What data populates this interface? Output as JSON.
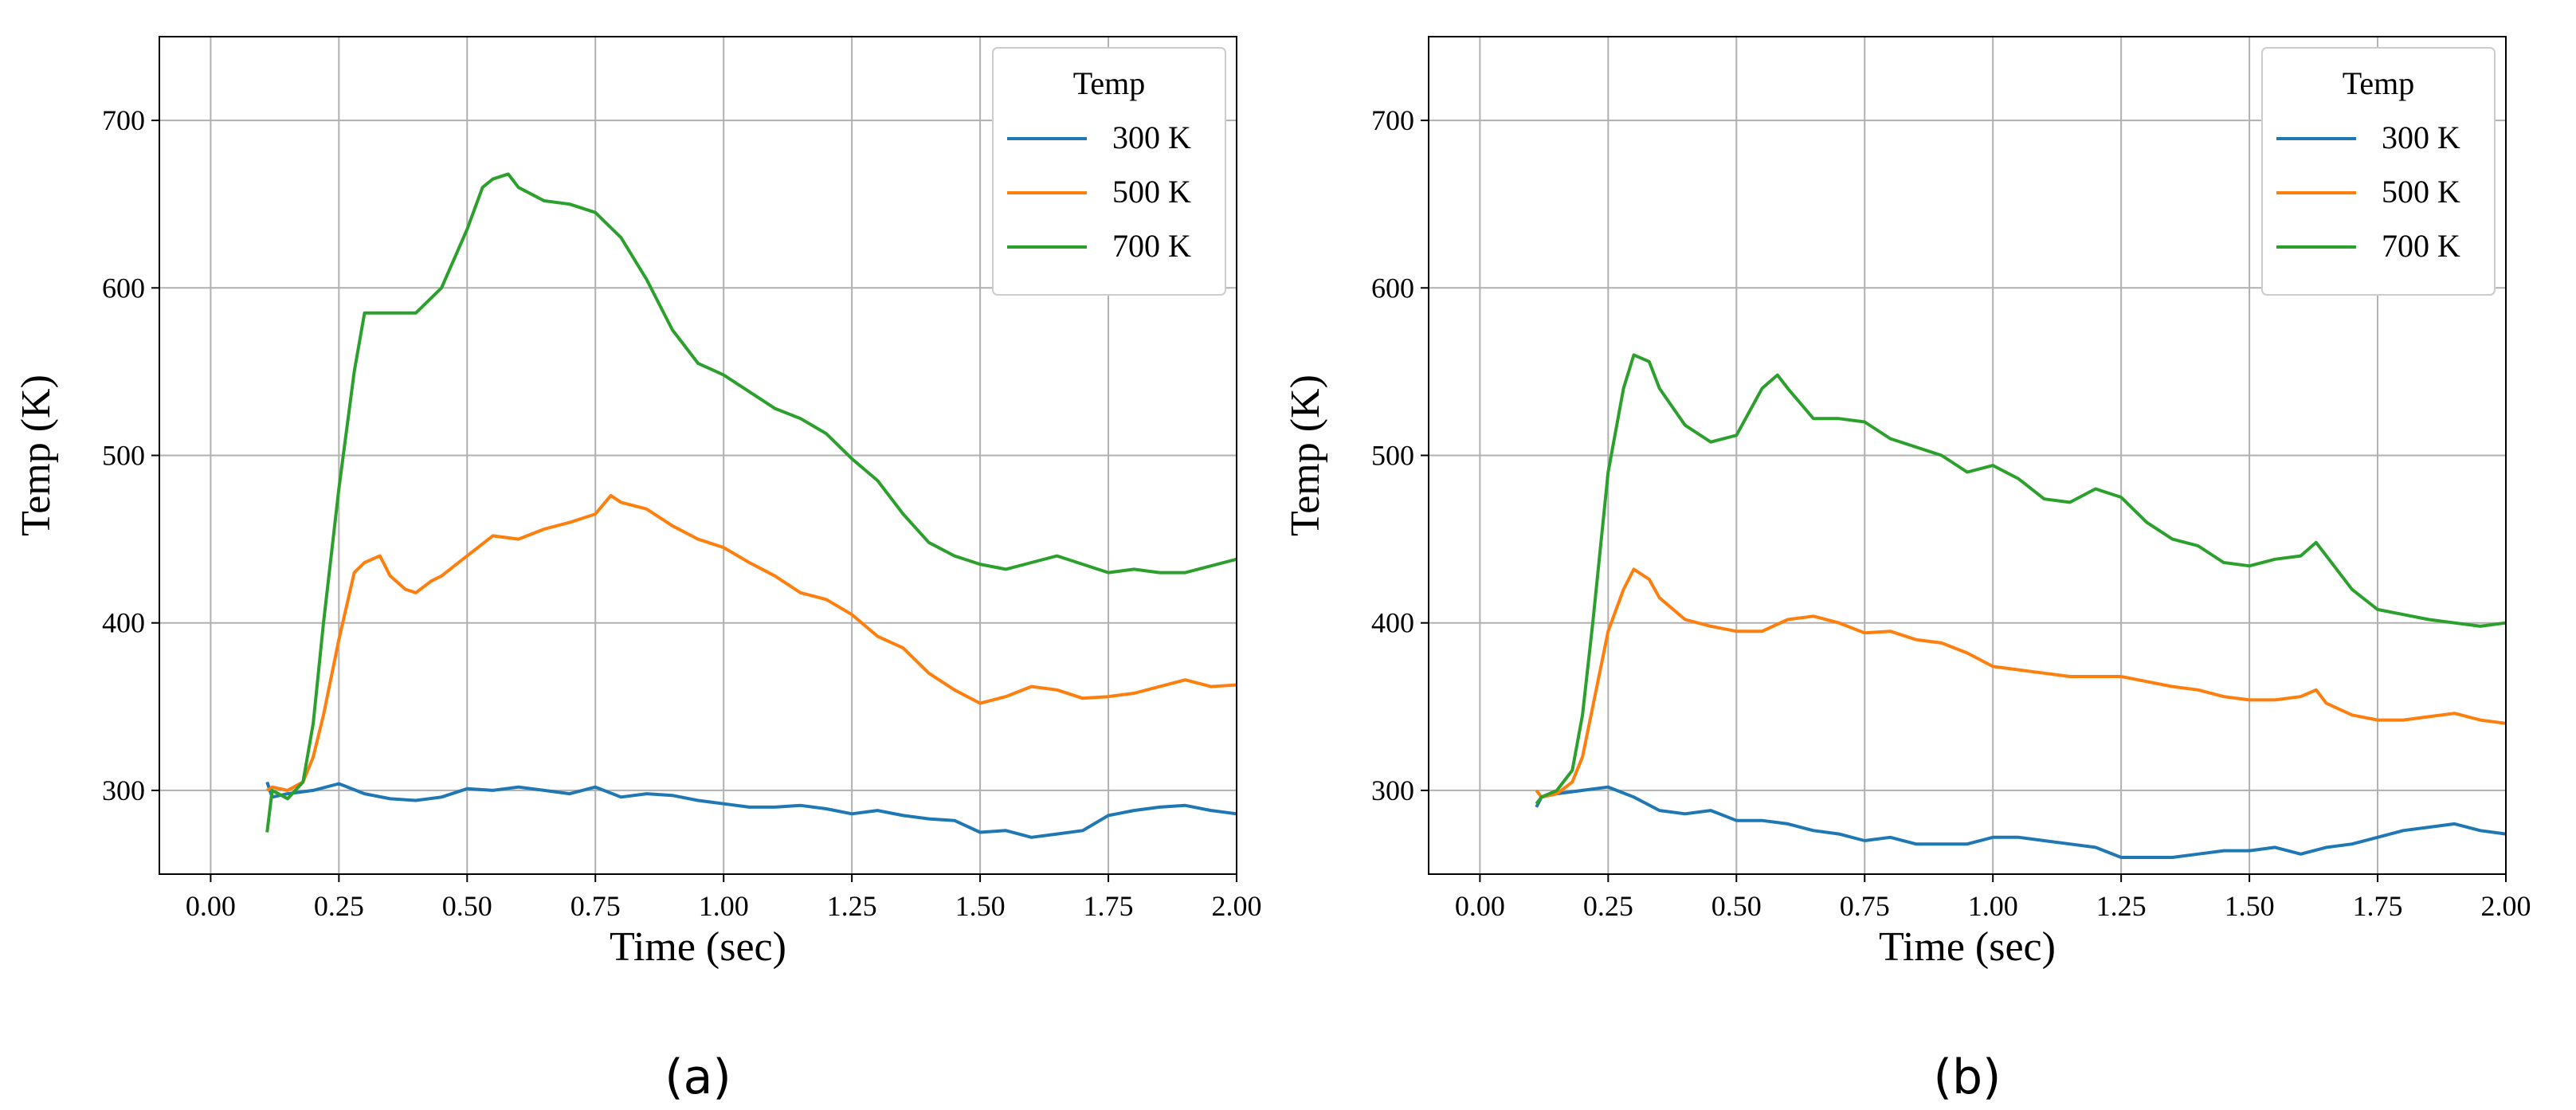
{
  "chart_data": [
    {
      "type": "line",
      "panel_label": "(a)",
      "xlabel": "Time (sec)",
      "ylabel": "Temp (K)",
      "xlim": [
        -0.1,
        2.0
      ],
      "ylim": [
        250,
        750
      ],
      "xticks": [
        0.0,
        0.25,
        0.5,
        0.75,
        1.0,
        1.25,
        1.5,
        1.75,
        2.0
      ],
      "xtick_labels": [
        "0.00",
        "0.25",
        "0.50",
        "0.75",
        "1.00",
        "1.25",
        "1.50",
        "1.75",
        "2.00"
      ],
      "yticks": [
        300,
        400,
        500,
        600,
        700
      ],
      "ytick_labels": [
        "300",
        "400",
        "500",
        "600",
        "700"
      ],
      "grid": true,
      "legend": {
        "title": "Temp",
        "placement": "top-right"
      },
      "series": [
        {
          "name": "300 K",
          "color": "#1f77b4",
          "x": [
            0.11,
            0.12,
            0.15,
            0.2,
            0.25,
            0.3,
            0.35,
            0.4,
            0.45,
            0.5,
            0.55,
            0.6,
            0.65,
            0.7,
            0.75,
            0.8,
            0.85,
            0.9,
            0.95,
            1.0,
            1.05,
            1.1,
            1.15,
            1.2,
            1.25,
            1.3,
            1.35,
            1.4,
            1.45,
            1.5,
            1.55,
            1.6,
            1.65,
            1.7,
            1.75,
            1.8,
            1.85,
            1.9,
            1.95,
            2.0
          ],
          "y": [
            305,
            296,
            298,
            300,
            304,
            298,
            295,
            294,
            296,
            301,
            300,
            302,
            300,
            298,
            302,
            296,
            298,
            297,
            294,
            292,
            290,
            290,
            291,
            289,
            286,
            288,
            285,
            283,
            282,
            275,
            276,
            272,
            274,
            276,
            285,
            288,
            290,
            291,
            288,
            286
          ]
        },
        {
          "name": "500 K",
          "color": "#ff7f0e",
          "x": [
            0.11,
            0.12,
            0.15,
            0.18,
            0.2,
            0.22,
            0.25,
            0.28,
            0.3,
            0.33,
            0.35,
            0.38,
            0.4,
            0.43,
            0.45,
            0.5,
            0.55,
            0.6,
            0.65,
            0.7,
            0.75,
            0.78,
            0.8,
            0.85,
            0.9,
            0.95,
            1.0,
            1.05,
            1.1,
            1.15,
            1.2,
            1.25,
            1.3,
            1.35,
            1.4,
            1.45,
            1.5,
            1.55,
            1.6,
            1.65,
            1.7,
            1.75,
            1.8,
            1.85,
            1.9,
            1.95,
            2.0
          ],
          "y": [
            300,
            302,
            300,
            305,
            320,
            345,
            390,
            430,
            436,
            440,
            428,
            420,
            418,
            425,
            428,
            440,
            452,
            450,
            456,
            460,
            465,
            476,
            472,
            468,
            458,
            450,
            445,
            436,
            428,
            418,
            414,
            405,
            392,
            385,
            370,
            360,
            352,
            356,
            362,
            360,
            355,
            356,
            358,
            362,
            366,
            362,
            363
          ]
        },
        {
          "name": "700 K",
          "color": "#2ca02c",
          "x": [
            0.11,
            0.12,
            0.15,
            0.18,
            0.2,
            0.22,
            0.25,
            0.28,
            0.3,
            0.35,
            0.4,
            0.45,
            0.5,
            0.53,
            0.55,
            0.58,
            0.6,
            0.65,
            0.7,
            0.75,
            0.8,
            0.85,
            0.9,
            0.95,
            1.0,
            1.05,
            1.1,
            1.15,
            1.2,
            1.25,
            1.3,
            1.35,
            1.4,
            1.45,
            1.5,
            1.55,
            1.6,
            1.65,
            1.7,
            1.75,
            1.8,
            1.85,
            1.9,
            1.95,
            2.0
          ],
          "y": [
            275,
            300,
            295,
            305,
            340,
            400,
            480,
            550,
            585,
            585,
            585,
            600,
            635,
            660,
            665,
            668,
            660,
            652,
            650,
            645,
            630,
            605,
            575,
            555,
            548,
            538,
            528,
            522,
            513,
            498,
            485,
            465,
            448,
            440,
            435,
            432,
            436,
            440,
            435,
            430,
            432,
            430,
            430,
            434,
            438
          ]
        }
      ]
    },
    {
      "type": "line",
      "panel_label": "(b)",
      "xlabel": "Time (sec)",
      "ylabel": "Temp (K)",
      "xlim": [
        -0.1,
        2.0
      ],
      "ylim": [
        250,
        750
      ],
      "xticks": [
        0.0,
        0.25,
        0.5,
        0.75,
        1.0,
        1.25,
        1.5,
        1.75,
        2.0
      ],
      "xtick_labels": [
        "0.00",
        "0.25",
        "0.50",
        "0.75",
        "1.00",
        "1.25",
        "1.50",
        "1.75",
        "2.00"
      ],
      "yticks": [
        300,
        400,
        500,
        600,
        700
      ],
      "ytick_labels": [
        "300",
        "400",
        "500",
        "600",
        "700"
      ],
      "grid": true,
      "legend": {
        "title": "Temp",
        "placement": "top-right"
      },
      "series": [
        {
          "name": "300 K",
          "color": "#1f77b4",
          "x": [
            0.11,
            0.12,
            0.15,
            0.2,
            0.25,
            0.3,
            0.35,
            0.4,
            0.45,
            0.5,
            0.55,
            0.6,
            0.65,
            0.7,
            0.75,
            0.8,
            0.85,
            0.9,
            0.95,
            1.0,
            1.05,
            1.1,
            1.15,
            1.2,
            1.25,
            1.3,
            1.35,
            1.4,
            1.45,
            1.5,
            1.55,
            1.6,
            1.65,
            1.7,
            1.75,
            1.8,
            1.85,
            1.9,
            1.95,
            2.0
          ],
          "y": [
            290,
            296,
            298,
            300,
            302,
            296,
            288,
            286,
            288,
            282,
            282,
            280,
            276,
            274,
            270,
            272,
            268,
            268,
            268,
            272,
            272,
            270,
            268,
            266,
            260,
            260,
            260,
            262,
            264,
            264,
            266,
            262,
            266,
            268,
            272,
            276,
            278,
            280,
            276,
            274
          ]
        },
        {
          "name": "500 K",
          "color": "#ff7f0e",
          "x": [
            0.11,
            0.12,
            0.15,
            0.18,
            0.2,
            0.22,
            0.25,
            0.28,
            0.3,
            0.33,
            0.35,
            0.4,
            0.45,
            0.5,
            0.55,
            0.6,
            0.65,
            0.7,
            0.75,
            0.8,
            0.85,
            0.9,
            0.95,
            1.0,
            1.05,
            1.1,
            1.15,
            1.2,
            1.25,
            1.3,
            1.35,
            1.4,
            1.45,
            1.5,
            1.55,
            1.6,
            1.63,
            1.65,
            1.7,
            1.75,
            1.8,
            1.85,
            1.9,
            1.95,
            2.0
          ],
          "y": [
            300,
            296,
            298,
            305,
            320,
            350,
            395,
            420,
            432,
            426,
            415,
            402,
            398,
            395,
            395,
            402,
            404,
            400,
            394,
            395,
            390,
            388,
            382,
            374,
            372,
            370,
            368,
            368,
            368,
            365,
            362,
            360,
            356,
            354,
            354,
            356,
            360,
            352,
            345,
            342,
            342,
            344,
            346,
            342,
            340
          ]
        },
        {
          "name": "700 K",
          "color": "#2ca02c",
          "x": [
            0.11,
            0.12,
            0.15,
            0.18,
            0.2,
            0.22,
            0.25,
            0.28,
            0.3,
            0.33,
            0.35,
            0.4,
            0.45,
            0.5,
            0.55,
            0.58,
            0.6,
            0.65,
            0.7,
            0.75,
            0.8,
            0.85,
            0.9,
            0.95,
            1.0,
            1.05,
            1.1,
            1.15,
            1.2,
            1.25,
            1.3,
            1.35,
            1.4,
            1.45,
            1.5,
            1.55,
            1.6,
            1.63,
            1.65,
            1.7,
            1.75,
            1.8,
            1.85,
            1.9,
            1.95,
            2.0
          ],
          "y": [
            292,
            296,
            300,
            312,
            345,
            400,
            490,
            540,
            560,
            556,
            540,
            518,
            508,
            512,
            540,
            548,
            540,
            522,
            522,
            520,
            510,
            505,
            500,
            490,
            494,
            486,
            474,
            472,
            480,
            475,
            460,
            450,
            446,
            436,
            434,
            438,
            440,
            448,
            440,
            420,
            408,
            405,
            402,
            400,
            398,
            400
          ]
        }
      ]
    }
  ]
}
